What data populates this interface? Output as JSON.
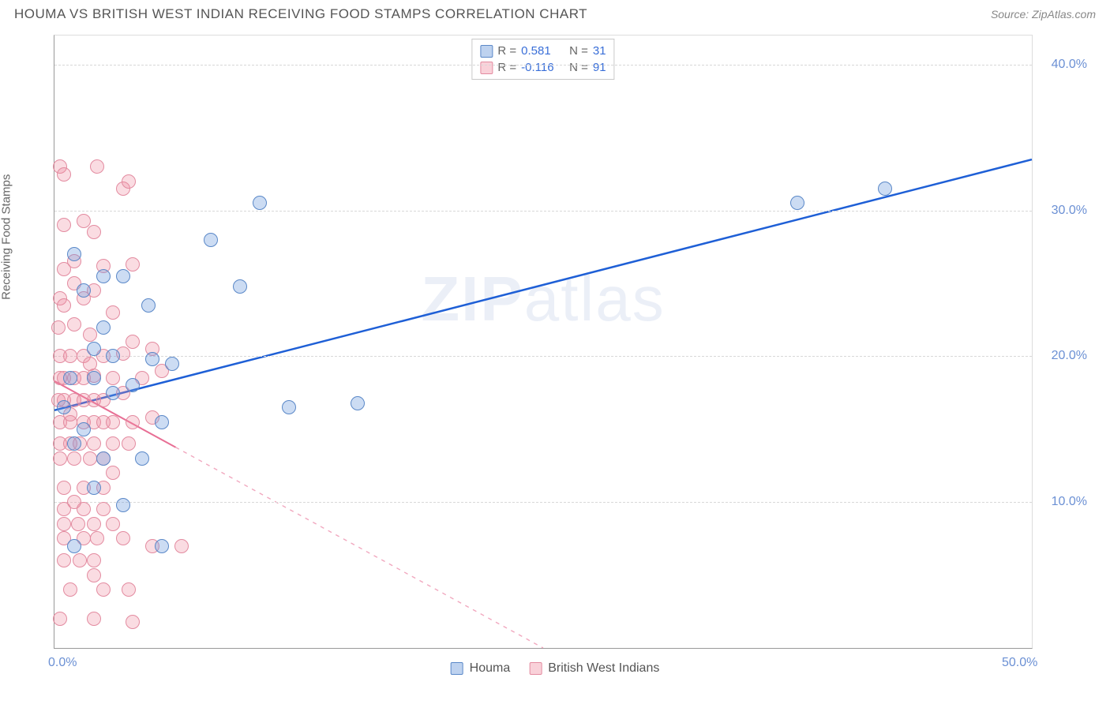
{
  "title": "HOUMA VS BRITISH WEST INDIAN RECEIVING FOOD STAMPS CORRELATION CHART",
  "source_label": "Source: ZipAtlas.com",
  "ylabel": "Receiving Food Stamps",
  "watermark": {
    "bold": "ZIP",
    "rest": "atlas"
  },
  "chart": {
    "type": "scatter-with-trend",
    "background_color": "#ffffff",
    "grid_color": "#d8d8d8",
    "axis_color": "#999999",
    "tick_color": "#6b90d4",
    "tick_fontsize": 16,
    "title_fontsize": 17,
    "title_color": "#555555",
    "x_domain": [
      0,
      50
    ],
    "y_domain": [
      0,
      42
    ],
    "x_ticks": [
      {
        "v": 0,
        "label": "0.0%"
      },
      {
        "v": 50,
        "label": "50.0%"
      }
    ],
    "y_gridlines": [
      10,
      20,
      30,
      40
    ],
    "y_ticks": [
      {
        "v": 10,
        "label": "10.0%"
      },
      {
        "v": 20,
        "label": "20.0%"
      },
      {
        "v": 30,
        "label": "30.0%"
      },
      {
        "v": 40,
        "label": "40.0%"
      }
    ],
    "series": [
      {
        "name": "Houma",
        "class": "houma",
        "marker_fill": "rgba(110,155,220,0.35)",
        "marker_stroke": "#5a88c8",
        "marker_size": 18,
        "R": "0.581",
        "N": "31",
        "trend": {
          "x1": 0,
          "y1": 16.3,
          "x2": 50,
          "y2": 33.5,
          "color": "#1e5fd6",
          "width": 2.5,
          "solid_until_x": 50,
          "dash": "none"
        },
        "points": [
          [
            1.0,
            27.0
          ],
          [
            1.5,
            24.5
          ],
          [
            4.0,
            18.0
          ],
          [
            2.5,
            25.5
          ],
          [
            2.0,
            18.5
          ],
          [
            3.0,
            17.5
          ],
          [
            5.0,
            19.8
          ],
          [
            5.5,
            15.5
          ],
          [
            8.0,
            28.0
          ],
          [
            9.5,
            24.8
          ],
          [
            10.5,
            30.5
          ],
          [
            12.0,
            16.5
          ],
          [
            15.5,
            16.8
          ],
          [
            3.0,
            20.0
          ],
          [
            2.5,
            13.0
          ],
          [
            4.5,
            13.0
          ],
          [
            1.0,
            7.0
          ],
          [
            5.5,
            7.0
          ],
          [
            3.5,
            9.8
          ],
          [
            0.5,
            16.5
          ],
          [
            1.5,
            15.0
          ],
          [
            2.5,
            22.0
          ],
          [
            4.8,
            23.5
          ],
          [
            6.0,
            19.5
          ],
          [
            1.0,
            14.0
          ],
          [
            3.5,
            25.5
          ],
          [
            2.0,
            20.5
          ],
          [
            38.0,
            30.5
          ],
          [
            42.5,
            31.5
          ],
          [
            0.8,
            18.5
          ],
          [
            2.0,
            11.0
          ]
        ]
      },
      {
        "name": "British West Indians",
        "class": "bwi",
        "marker_fill": "rgba(240,140,160,0.30)",
        "marker_stroke": "#e38ba0",
        "marker_size": 18,
        "R": "-0.116",
        "N": "91",
        "trend": {
          "x1": 0,
          "y1": 18.3,
          "x2": 25,
          "y2": 0,
          "color": "#e86f95",
          "width": 2,
          "solid_until_x": 6.2,
          "dash": "5,6"
        },
        "points": [
          [
            0.3,
            33.0
          ],
          [
            0.5,
            32.5
          ],
          [
            2.2,
            33.0
          ],
          [
            3.5,
            31.5
          ],
          [
            3.8,
            32.0
          ],
          [
            0.5,
            29.0
          ],
          [
            1.5,
            29.3
          ],
          [
            2.0,
            28.5
          ],
          [
            0.5,
            26.0
          ],
          [
            1.0,
            26.5
          ],
          [
            2.5,
            26.2
          ],
          [
            4.0,
            26.3
          ],
          [
            0.3,
            24.0
          ],
          [
            1.5,
            24.0
          ],
          [
            3.0,
            23.0
          ],
          [
            0.2,
            22.0
          ],
          [
            1.0,
            22.2
          ],
          [
            1.8,
            21.5
          ],
          [
            4.0,
            21.0
          ],
          [
            0.3,
            20.0
          ],
          [
            0.8,
            20.0
          ],
          [
            1.5,
            20.0
          ],
          [
            2.5,
            20.0
          ],
          [
            3.5,
            20.2
          ],
          [
            5.0,
            20.5
          ],
          [
            0.3,
            18.5
          ],
          [
            0.5,
            18.5
          ],
          [
            1.0,
            18.5
          ],
          [
            1.5,
            18.5
          ],
          [
            2.0,
            18.7
          ],
          [
            3.0,
            18.5
          ],
          [
            4.5,
            18.5
          ],
          [
            5.5,
            19.0
          ],
          [
            0.2,
            17.0
          ],
          [
            0.5,
            17.0
          ],
          [
            1.0,
            17.0
          ],
          [
            1.5,
            17.0
          ],
          [
            2.0,
            17.0
          ],
          [
            2.5,
            17.0
          ],
          [
            3.5,
            17.5
          ],
          [
            0.3,
            15.5
          ],
          [
            0.8,
            15.5
          ],
          [
            1.5,
            15.5
          ],
          [
            2.0,
            15.5
          ],
          [
            2.5,
            15.5
          ],
          [
            3.0,
            15.5
          ],
          [
            4.0,
            15.5
          ],
          [
            5.0,
            15.8
          ],
          [
            0.3,
            14.0
          ],
          [
            0.8,
            14.0
          ],
          [
            1.3,
            14.0
          ],
          [
            2.0,
            14.0
          ],
          [
            3.0,
            14.0
          ],
          [
            3.8,
            14.0
          ],
          [
            0.3,
            13.0
          ],
          [
            1.0,
            13.0
          ],
          [
            1.8,
            13.0
          ],
          [
            2.5,
            13.0
          ],
          [
            0.5,
            11.0
          ],
          [
            1.5,
            11.0
          ],
          [
            2.5,
            11.0
          ],
          [
            0.5,
            9.5
          ],
          [
            1.5,
            9.5
          ],
          [
            2.5,
            9.5
          ],
          [
            0.5,
            8.5
          ],
          [
            1.2,
            8.5
          ],
          [
            2.0,
            8.5
          ],
          [
            3.0,
            8.5
          ],
          [
            0.5,
            7.5
          ],
          [
            1.5,
            7.5
          ],
          [
            2.2,
            7.5
          ],
          [
            3.5,
            7.5
          ],
          [
            5.0,
            7.0
          ],
          [
            6.5,
            7.0
          ],
          [
            0.5,
            6.0
          ],
          [
            1.3,
            6.0
          ],
          [
            2.0,
            6.0
          ],
          [
            0.8,
            4.0
          ],
          [
            2.5,
            4.0
          ],
          [
            3.8,
            4.0
          ],
          [
            0.3,
            2.0
          ],
          [
            2.0,
            2.0
          ],
          [
            4.0,
            1.8
          ],
          [
            1.0,
            25.0
          ],
          [
            2.0,
            24.5
          ],
          [
            0.5,
            23.5
          ],
          [
            1.8,
            19.5
          ],
          [
            0.8,
            16.0
          ],
          [
            3.0,
            12.0
          ],
          [
            1.0,
            10.0
          ],
          [
            2.0,
            5.0
          ]
        ]
      }
    ],
    "legend_bottom": [
      {
        "swatch": "blue",
        "label": "Houma"
      },
      {
        "swatch": "pink",
        "label": "British West Indians"
      }
    ]
  }
}
